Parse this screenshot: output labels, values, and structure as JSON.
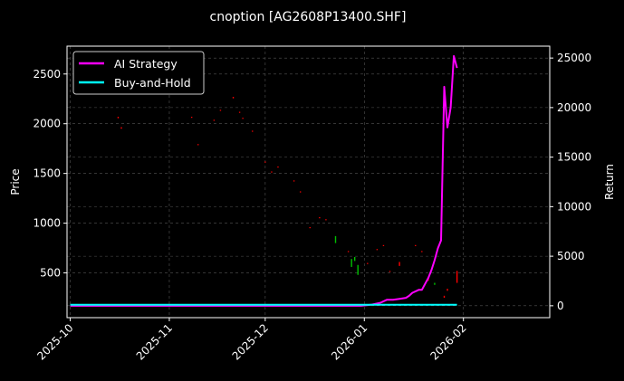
{
  "chart_data": {
    "type": "line",
    "title": "cnoption [AG2608P13400.SHF]",
    "xlabel": "",
    "ylabel_left": "Price",
    "ylabel_right": "Return",
    "x_ticks": [
      "2025-10",
      "2025-11",
      "2025-12",
      "2026-01",
      "2026-02"
    ],
    "y_left_ticks": [
      500,
      1000,
      1500,
      2000,
      2500
    ],
    "y_right_ticks": [
      0,
      5000,
      10000,
      15000,
      20000,
      25000
    ],
    "xlim": [
      "2025-09-30",
      "2026-02-28"
    ],
    "ylim_left": [
      50,
      2780
    ],
    "ylim_right": [
      -1200,
      26200
    ],
    "grid": true,
    "legend_position": "top-left",
    "colors": {
      "background": "#000000",
      "strategy": "#ff00ff",
      "buy_hold": "#00ffff",
      "up": "#00c000",
      "down": "#ff0000",
      "grid": "#555555"
    },
    "series": [
      {
        "name": "AI Strategy",
        "axis": "right",
        "points": [
          [
            "2025-10-01",
            0
          ],
          [
            "2025-12-31",
            0
          ],
          [
            "2026-01-03",
            100
          ],
          [
            "2026-01-06",
            300
          ],
          [
            "2026-01-08",
            600
          ],
          [
            "2026-01-10",
            600
          ],
          [
            "2026-01-12",
            700
          ],
          [
            "2026-01-14",
            800
          ],
          [
            "2026-01-15",
            1000
          ],
          [
            "2026-01-16",
            1300
          ],
          [
            "2026-01-18",
            1600
          ],
          [
            "2026-01-19",
            1600
          ],
          [
            "2026-01-20",
            2200
          ],
          [
            "2026-01-21",
            2800
          ],
          [
            "2026-01-22",
            3600
          ],
          [
            "2026-01-23",
            4600
          ],
          [
            "2026-01-24",
            5800
          ],
          [
            "2026-01-25",
            6600
          ],
          [
            "2026-01-26",
            22100
          ],
          [
            "2026-01-27",
            18000
          ],
          [
            "2026-01-28",
            20000
          ],
          [
            "2026-01-29",
            25200
          ],
          [
            "2026-01-30",
            24000
          ]
        ]
      },
      {
        "name": "Buy-and-Hold",
        "axis": "right",
        "points": [
          [
            "2025-10-01",
            100
          ],
          [
            "2026-01-30",
            100
          ]
        ]
      }
    ],
    "candles": [
      [
        "2025-10-16",
        2070,
        2055,
        "down"
      ],
      [
        "2025-10-17",
        1965,
        1950,
        "down"
      ],
      [
        "2025-11-08",
        2070,
        2060,
        "down"
      ],
      [
        "2025-11-10",
        1795,
        1785,
        "down"
      ],
      [
        "2025-11-15",
        2040,
        2030,
        "down"
      ],
      [
        "2025-11-17",
        2140,
        2130,
        "down"
      ],
      [
        "2025-11-21",
        2270,
        2255,
        "down"
      ],
      [
        "2025-11-23",
        2120,
        2110,
        "down"
      ],
      [
        "2025-11-24",
        2060,
        2050,
        "down"
      ],
      [
        "2025-11-27",
        1930,
        1920,
        "down"
      ],
      [
        "2025-12-01",
        1620,
        1610,
        "down"
      ],
      [
        "2025-12-03",
        1520,
        1510,
        "down"
      ],
      [
        "2025-12-05",
        1570,
        1560,
        "down"
      ],
      [
        "2025-12-10",
        1430,
        1420,
        "down"
      ],
      [
        "2025-12-12",
        1320,
        1310,
        "down"
      ],
      [
        "2025-12-15",
        960,
        950,
        "down"
      ],
      [
        "2025-12-18",
        1060,
        1050,
        "down"
      ],
      [
        "2025-12-20",
        1040,
        1030,
        "down"
      ],
      [
        "2025-12-23",
        870,
        800,
        "up"
      ],
      [
        "2025-12-27",
        720,
        710,
        "down"
      ],
      [
        "2025-12-28",
        640,
        560,
        "up"
      ],
      [
        "2025-12-29",
        660,
        620,
        "up"
      ],
      [
        "2025-12-30",
        580,
        480,
        "up"
      ],
      [
        "2026-01-02",
        600,
        590,
        "down"
      ],
      [
        "2026-01-05",
        740,
        730,
        "down"
      ],
      [
        "2026-01-07",
        780,
        770,
        "down"
      ],
      [
        "2026-01-09",
        520,
        510,
        "down"
      ],
      [
        "2026-01-12",
        610,
        570,
        "down"
      ],
      [
        "2026-01-17",
        780,
        770,
        "down"
      ],
      [
        "2026-01-19",
        720,
        710,
        "down"
      ],
      [
        "2026-01-21",
        460,
        420,
        "down"
      ],
      [
        "2026-01-23",
        400,
        380,
        "up"
      ],
      [
        "2026-01-26",
        270,
        250,
        "down"
      ],
      [
        "2026-01-27",
        340,
        320,
        "down"
      ],
      [
        "2026-01-30",
        520,
        400,
        "down"
      ]
    ]
  }
}
